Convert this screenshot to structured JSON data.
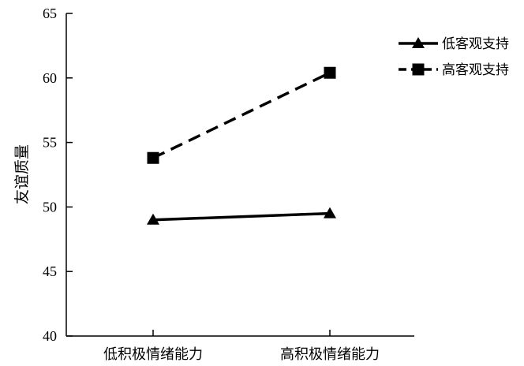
{
  "chart_data": {
    "type": "line",
    "title": "",
    "xlabel": "",
    "ylabel": "友谊质量",
    "categories": [
      "低积极情绪能力",
      "高积极情绪能力"
    ],
    "ylim": [
      40,
      65
    ],
    "yticks": [
      40,
      45,
      50,
      55,
      60,
      65
    ],
    "grid": false,
    "legend_position": "top-right",
    "series": [
      {
        "name": "低客观支持",
        "values": [
          49.0,
          49.5
        ],
        "marker": "triangle",
        "line_style": "solid",
        "color": "#000000"
      },
      {
        "name": "高客观支持",
        "values": [
          53.8,
          60.4
        ],
        "marker": "square",
        "line_style": "dashed",
        "color": "#000000"
      }
    ]
  }
}
